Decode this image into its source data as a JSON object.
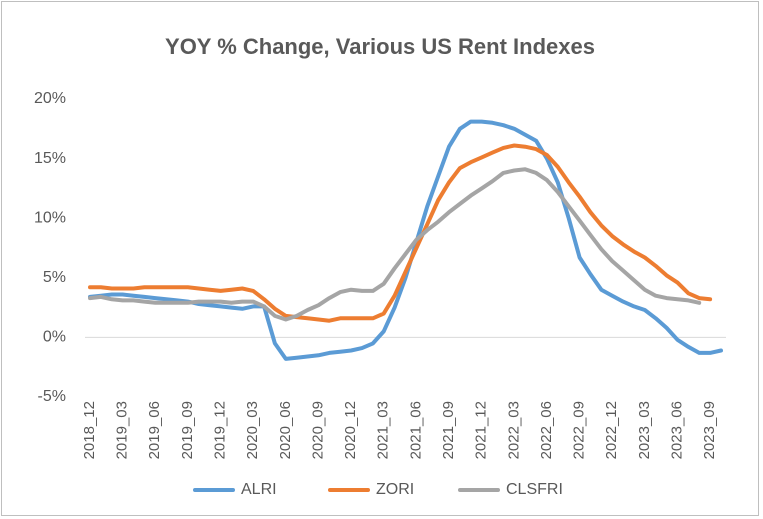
{
  "chart_data": {
    "type": "line",
    "title": "YOY % Change, Various US Rent Indexes",
    "categories": [
      "2018_12",
      null,
      null,
      "2019_03",
      null,
      null,
      "2019_06",
      null,
      null,
      "2019_09",
      null,
      null,
      "2019_12",
      null,
      null,
      "2020_03",
      null,
      null,
      "2020_06",
      null,
      null,
      "2020_09",
      null,
      null,
      "2020_12",
      null,
      null,
      "2021_03",
      null,
      null,
      "2021_06",
      null,
      null,
      "2021_09",
      null,
      null,
      "2021_12",
      null,
      null,
      "2022_03",
      null,
      null,
      "2022_06",
      null,
      null,
      "2022_09",
      null,
      null,
      "2022_12",
      null,
      null,
      "2023_03",
      null,
      null,
      "2023_06",
      null,
      null,
      "2023_09",
      null
    ],
    "series": [
      {
        "name": "ALRI",
        "color": "#5b9bd5",
        "values": [
          3.4,
          3.5,
          3.6,
          3.6,
          3.5,
          3.4,
          3.3,
          3.2,
          3.1,
          3.0,
          2.8,
          2.7,
          2.6,
          2.5,
          2.4,
          2.6,
          2.6,
          -0.5,
          -1.8,
          -1.7,
          -1.6,
          -1.5,
          -1.3,
          -1.2,
          -1.1,
          -0.9,
          -0.5,
          0.5,
          2.5,
          5,
          8,
          11,
          13.5,
          16,
          17.5,
          18.1,
          18.1,
          18,
          17.8,
          17.5,
          17,
          16.5,
          15,
          13,
          10,
          6.7,
          5.3,
          4,
          3.5,
          3,
          2.6,
          2.3,
          1.6,
          0.8,
          -0.2,
          -0.8,
          -1.3,
          -1.3,
          -1.1
        ]
      },
      {
        "name": "ZORI",
        "color": "#ed7d31",
        "values": [
          4.2,
          4.2,
          4.1,
          4.1,
          4.1,
          4.2,
          4.2,
          4.2,
          4.2,
          4.2,
          4.1,
          4.0,
          3.9,
          4.0,
          4.1,
          3.9,
          3.2,
          2.4,
          1.8,
          1.7,
          1.6,
          1.5,
          1.4,
          1.6,
          1.6,
          1.6,
          1.6,
          2.0,
          3.5,
          5.5,
          7.5,
          9.5,
          11.5,
          13,
          14.2,
          14.7,
          15.1,
          15.5,
          15.9,
          16.1,
          16,
          15.8,
          15.3,
          14.3,
          13,
          11.8,
          10.5,
          9.4,
          8.5,
          7.8,
          7.2,
          6.7,
          6.0,
          5.2,
          4.6,
          3.7,
          3.3,
          3.2,
          null
        ]
      },
      {
        "name": "CLSFRI",
        "color": "#a5a5a5",
        "values": [
          3.3,
          3.4,
          3.2,
          3.1,
          3.1,
          3.0,
          2.9,
          2.9,
          2.9,
          2.9,
          3.0,
          3.0,
          3.0,
          2.9,
          3.0,
          3.0,
          2.6,
          1.8,
          1.5,
          1.8,
          2.3,
          2.7,
          3.3,
          3.8,
          4.0,
          3.9,
          3.9,
          4.5,
          5.8,
          7,
          8.2,
          9,
          9.7,
          10.5,
          11.2,
          11.9,
          12.5,
          13.1,
          13.8,
          14,
          14.1,
          13.8,
          13.2,
          12.2,
          11,
          9.8,
          8.6,
          7.4,
          6.4,
          5.6,
          4.8,
          4.0,
          3.5,
          3.3,
          3.2,
          3.1,
          2.9,
          null,
          null
        ]
      }
    ],
    "ylim": [
      -5,
      20
    ],
    "yticks": [
      {
        "value": -5,
        "label": "-5%"
      },
      {
        "value": 0,
        "label": "0%"
      },
      {
        "value": 5,
        "label": "5%"
      },
      {
        "value": 10,
        "label": "10%"
      },
      {
        "value": 15,
        "label": "15%"
      },
      {
        "value": 20,
        "label": "20%"
      }
    ],
    "grid": false,
    "legend": "bottom"
  }
}
